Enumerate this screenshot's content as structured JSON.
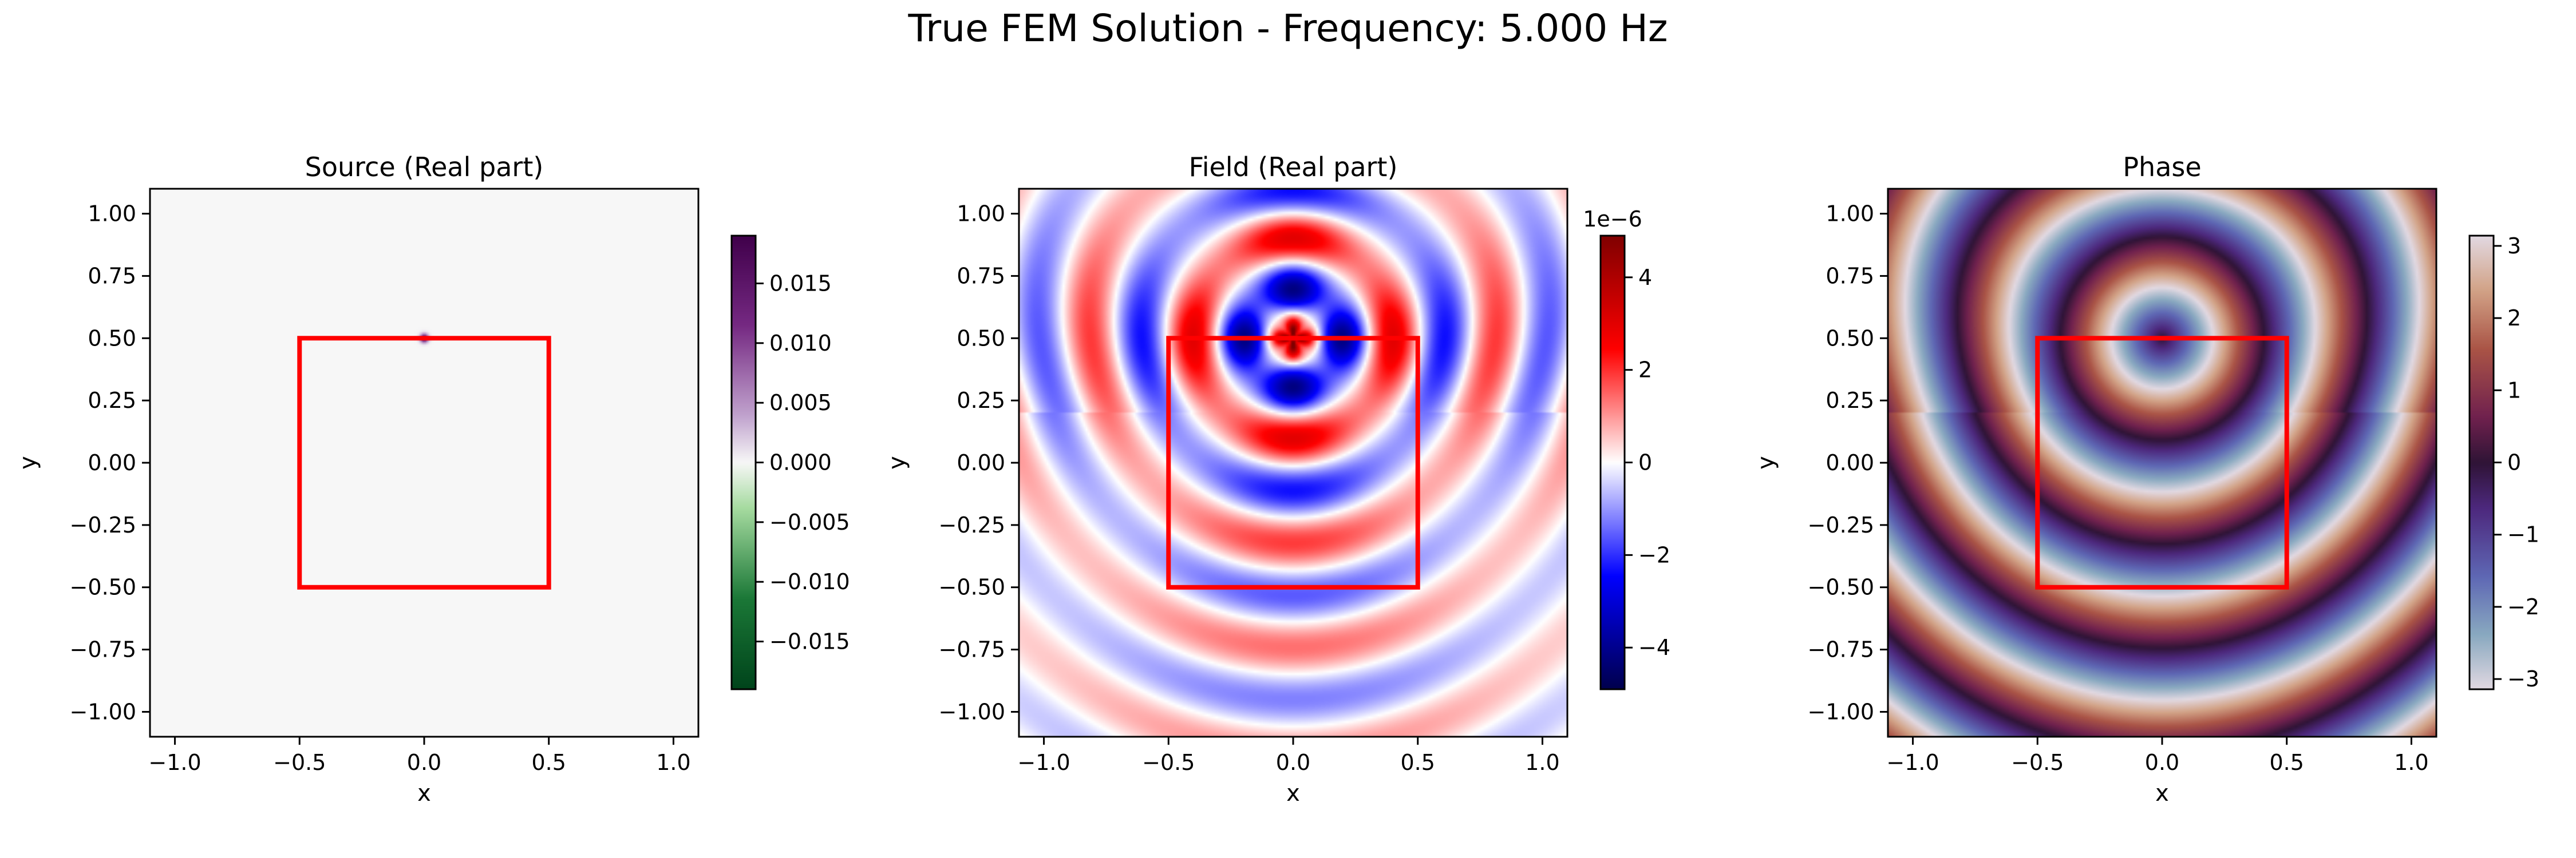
{
  "figure": {
    "suptitle": "True FEM Solution - Frequency: 5.000 Hz"
  },
  "chart_data": [
    {
      "type": "heatmap",
      "title": "Source (Real part)",
      "xlabel": "x",
      "ylabel": "y",
      "xlim": [
        -1.1,
        1.1
      ],
      "ylim": [
        -1.1,
        1.1
      ],
      "xticks": [
        -1.0,
        -0.5,
        0.0,
        0.5,
        1.0
      ],
      "xtick_labels": [
        "−1.0",
        "−0.5",
        "0.0",
        "0.5",
        "1.0"
      ],
      "yticks": [
        1.0,
        0.75,
        0.5,
        0.25,
        0.0,
        -0.25,
        -0.5,
        -0.75,
        -1.0
      ],
      "ytick_labels": [
        "1.00",
        "0.75",
        "0.50",
        "0.25",
        "0.00",
        "−0.25",
        "−0.50",
        "−0.75",
        "−1.00"
      ],
      "field": "source",
      "source_point": [
        0.0,
        0.5
      ],
      "box": {
        "x": [
          -0.5,
          0.5
        ],
        "y": [
          -0.5,
          0.5
        ],
        "color": "#ff0000"
      },
      "colormap": "PRGn_r",
      "colorbar": {
        "range": [
          -0.019,
          0.019
        ],
        "ticks": [
          0.015,
          0.01,
          0.005,
          0.0,
          -0.005,
          -0.01,
          -0.015
        ],
        "tick_labels": [
          "0.015",
          "0.010",
          "0.005",
          "0.000",
          "−0.005",
          "−0.010",
          "−0.015"
        ],
        "offset_text": ""
      }
    },
    {
      "type": "heatmap",
      "title": "Field (Real part)",
      "xlabel": "x",
      "ylabel": "y",
      "xlim": [
        -1.1,
        1.1
      ],
      "ylim": [
        -1.1,
        1.1
      ],
      "xticks": [
        -1.0,
        -0.5,
        0.0,
        0.5,
        1.0
      ],
      "xtick_labels": [
        "−1.0",
        "−0.5",
        "0.0",
        "0.5",
        "1.0"
      ],
      "yticks": [
        1.0,
        0.75,
        0.5,
        0.25,
        0.0,
        -0.25,
        -0.5,
        -0.75,
        -1.0
      ],
      "ytick_labels": [
        "1.00",
        "0.75",
        "0.50",
        "0.25",
        "0.00",
        "−0.25",
        "−0.50",
        "−0.75",
        "−1.00"
      ],
      "field": "real",
      "source_point": [
        0.0,
        0.5
      ],
      "box": {
        "x": [
          -0.5,
          0.5
        ],
        "y": [
          -0.5,
          0.5
        ],
        "color": "#ff0000"
      },
      "colormap": "seismic",
      "colorbar": {
        "range": [
          -4.9,
          4.9
        ],
        "ticks": [
          4,
          2,
          0,
          -2,
          -4
        ],
        "tick_labels": [
          "4",
          "2",
          "0",
          "−2",
          "−4"
        ],
        "offset_text": "1e−6"
      }
    },
    {
      "type": "heatmap",
      "title": "Phase",
      "xlabel": "x",
      "ylabel": "y",
      "xlim": [
        -1.1,
        1.1
      ],
      "ylim": [
        -1.1,
        1.1
      ],
      "xticks": [
        -1.0,
        -0.5,
        0.0,
        0.5,
        1.0
      ],
      "xtick_labels": [
        "−1.0",
        "−0.5",
        "0.0",
        "0.5",
        "1.0"
      ],
      "yticks": [
        1.0,
        0.75,
        0.5,
        0.25,
        0.0,
        -0.25,
        -0.5,
        -0.75,
        -1.0
      ],
      "ytick_labels": [
        "1.00",
        "0.75",
        "0.50",
        "0.25",
        "0.00",
        "−0.25",
        "−0.50",
        "−0.75",
        "−1.00"
      ],
      "field": "phase",
      "source_point": [
        0.0,
        0.5
      ],
      "box": {
        "x": [
          -0.5,
          0.5
        ],
        "y": [
          -0.5,
          0.5
        ],
        "color": "#ff0000"
      },
      "colormap": "twilight",
      "colorbar": {
        "range": [
          -3.1416,
          3.1416
        ],
        "ticks": [
          3,
          2,
          1,
          0,
          -1,
          -2,
          -3
        ],
        "tick_labels": [
          "3",
          "2",
          "1",
          "0",
          "−1",
          "−2",
          "−3"
        ],
        "offset_text": ""
      }
    }
  ]
}
